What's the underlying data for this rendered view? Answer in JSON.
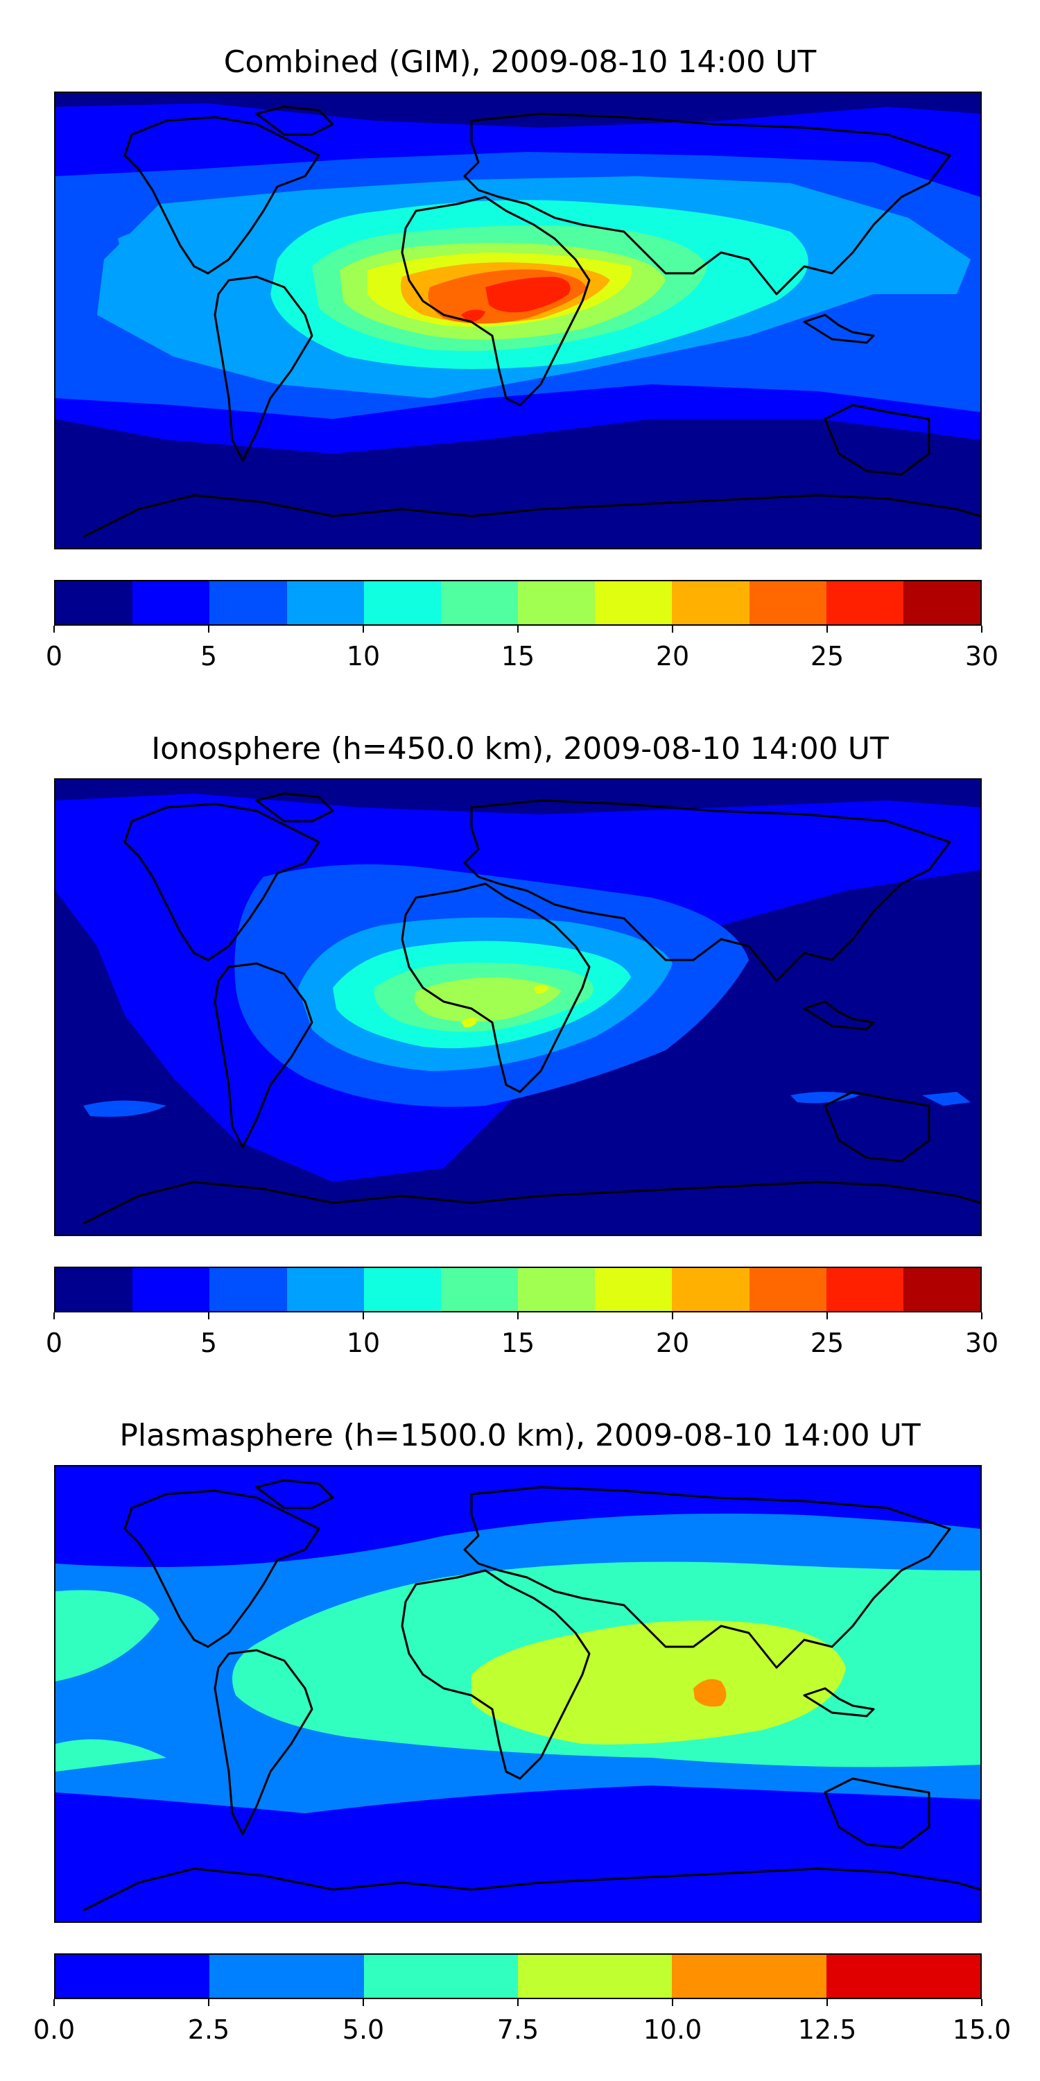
{
  "chart_data": [
    {
      "type": "heatmap",
      "title": "Combined (GIM), 2009-08-10 14:00 UT",
      "levels": [
        0,
        2.5,
        5,
        7.5,
        10,
        12.5,
        15,
        17.5,
        20,
        22.5,
        25,
        27.5,
        30
      ],
      "colors": [
        "#00008f",
        "#0000ff",
        "#0050ff",
        "#00a0ff",
        "#10ffe0",
        "#50ffa0",
        "#a0ff50",
        "#e0ff10",
        "#ffb000",
        "#ff6800",
        "#ff2000",
        "#b00000"
      ],
      "tick_labels": [
        "0",
        "5",
        "10",
        "15",
        "20",
        "25",
        "30"
      ],
      "tick_values": [
        0,
        5,
        10,
        15,
        20,
        25,
        30
      ],
      "peak_value": 25,
      "peak_region": "West-central Africa"
    },
    {
      "type": "heatmap",
      "title": "Ionosphere  (h=450.0 km), 2009-08-10 14:00 UT",
      "levels": [
        0,
        2.5,
        5,
        7.5,
        10,
        12.5,
        15,
        17.5,
        20,
        22.5,
        25,
        27.5,
        30
      ],
      "colors": [
        "#00008f",
        "#0000ff",
        "#0050ff",
        "#00a0ff",
        "#10ffe0",
        "#50ffa0",
        "#a0ff50",
        "#e0ff10",
        "#ffb000",
        "#ff6800",
        "#ff2000",
        "#b00000"
      ],
      "tick_labels": [
        "0",
        "5",
        "10",
        "15",
        "20",
        "25",
        "30"
      ],
      "tick_values": [
        0,
        5,
        10,
        15,
        20,
        25,
        30
      ],
      "peak_value": 17.5,
      "peak_region": "Central Africa / Gulf of Guinea"
    },
    {
      "type": "heatmap",
      "title": "Plasmasphere (h=1500.0 km), 2009-08-10 14:00 UT",
      "levels": [
        0,
        2.5,
        5,
        7.5,
        10,
        12.5,
        15
      ],
      "colors": [
        "#0000ff",
        "#0080ff",
        "#30ffc0",
        "#c0ff30",
        "#ff9000",
        "#e00000"
      ],
      "tick_labels": [
        "0.0",
        "2.5",
        "5.0",
        "7.5",
        "10.0",
        "12.5",
        "15.0"
      ],
      "tick_values": [
        0,
        2.5,
        5,
        7.5,
        10,
        12.5,
        15
      ],
      "peak_value": 10,
      "peak_region": "Southern India"
    }
  ]
}
